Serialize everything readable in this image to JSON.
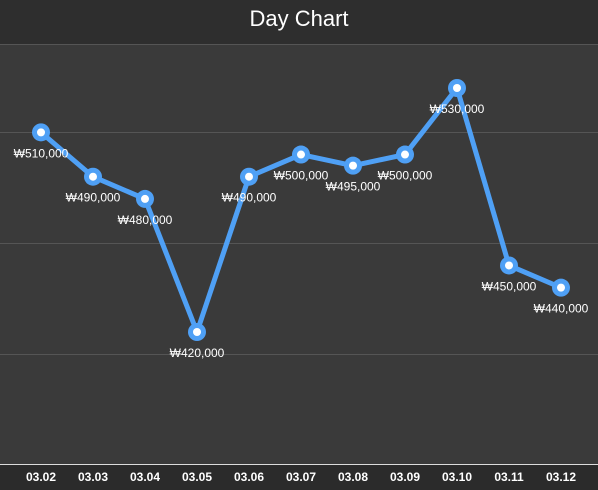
{
  "title": "Day Chart",
  "chart_data": {
    "type": "line",
    "title": "Day Chart",
    "categories": [
      "03.02",
      "03.03",
      "03.04",
      "03.05",
      "03.06",
      "03.07",
      "03.08",
      "03.09",
      "03.10",
      "03.11",
      "03.12"
    ],
    "series": [
      {
        "values": [
          510000,
          490000,
          480000,
          420000,
          490000,
          500000,
          495000,
          500000,
          530000,
          450000,
          440000
        ],
        "labels": [
          "₩510,000",
          "₩490,000",
          "₩480,000",
          "₩420,000",
          "₩490,000",
          "₩500,000",
          "₩495,000",
          "₩500,000",
          "₩530,000",
          "₩450,000",
          "₩440,000"
        ]
      }
    ],
    "ylim": [
      370000,
      550000
    ],
    "grid": true,
    "colors": {
      "line": "#4fa0f5",
      "background": "#3a3a3a",
      "grid": "#555555",
      "text": "#ffffff"
    }
  }
}
